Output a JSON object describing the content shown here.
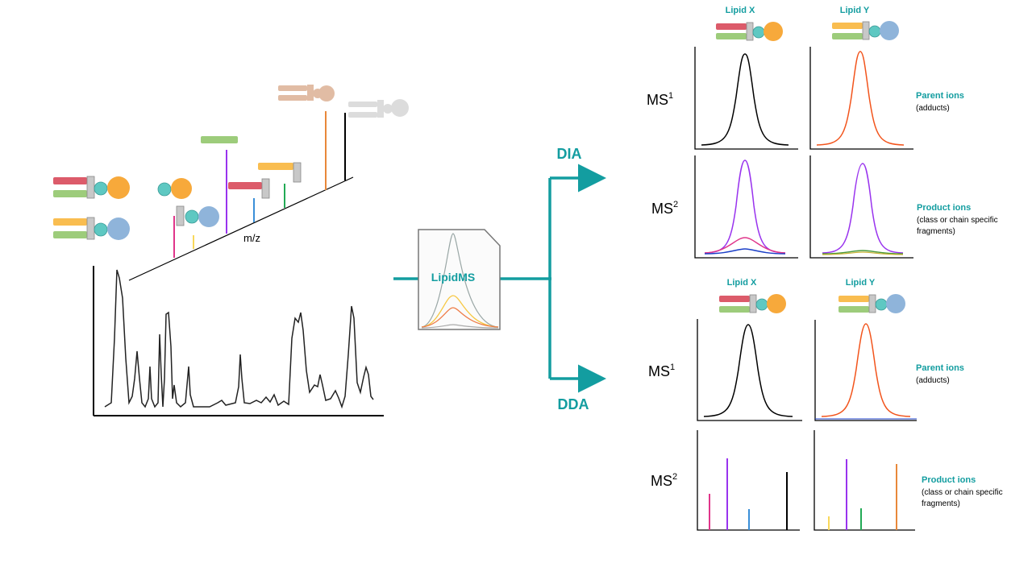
{
  "mz_label": "m/z",
  "tool": {
    "name": "LipidMS"
  },
  "branches": {
    "dia": "DIA",
    "dda": "DDA"
  },
  "dia_panel": {
    "lipid_x": "Lipid X",
    "lipid_y": "Lipid Y",
    "ms1": {
      "label": "MS",
      "sup": "1"
    },
    "ms2": {
      "label": "MS",
      "sup": "2"
    },
    "parent": {
      "title": "Parent ions",
      "sub": "(adducts)"
    },
    "product": {
      "title": "Product ions",
      "line1": "(class or chain specific",
      "line2": "fragments)"
    }
  },
  "dda_panel": {
    "lipid_x": "Lipid X",
    "lipid_y": "Lipid Y",
    "ms1": {
      "label": "MS",
      "sup": "1"
    },
    "ms2": {
      "label": "MS",
      "sup": "2"
    },
    "parent": {
      "title": "Parent ions",
      "sub": "(adducts)"
    },
    "product": {
      "title": "Product ions",
      "line1": "(class or chain specific",
      "line2": "fragments)"
    }
  },
  "colors": {
    "teal": "#139da0",
    "red_chain": "#dc5b6a",
    "green_chain": "#9dcc7b",
    "yellow_chain": "#f9bd50",
    "orange_head": "#f7a93b",
    "blue_head": "#8fb4da",
    "cyan_link": "#5ec8c2",
    "black_trace": "#000000",
    "orange_trace": "#f2541c",
    "purple_trace": "#9933ee",
    "pink_trace": "#e0358a"
  }
}
